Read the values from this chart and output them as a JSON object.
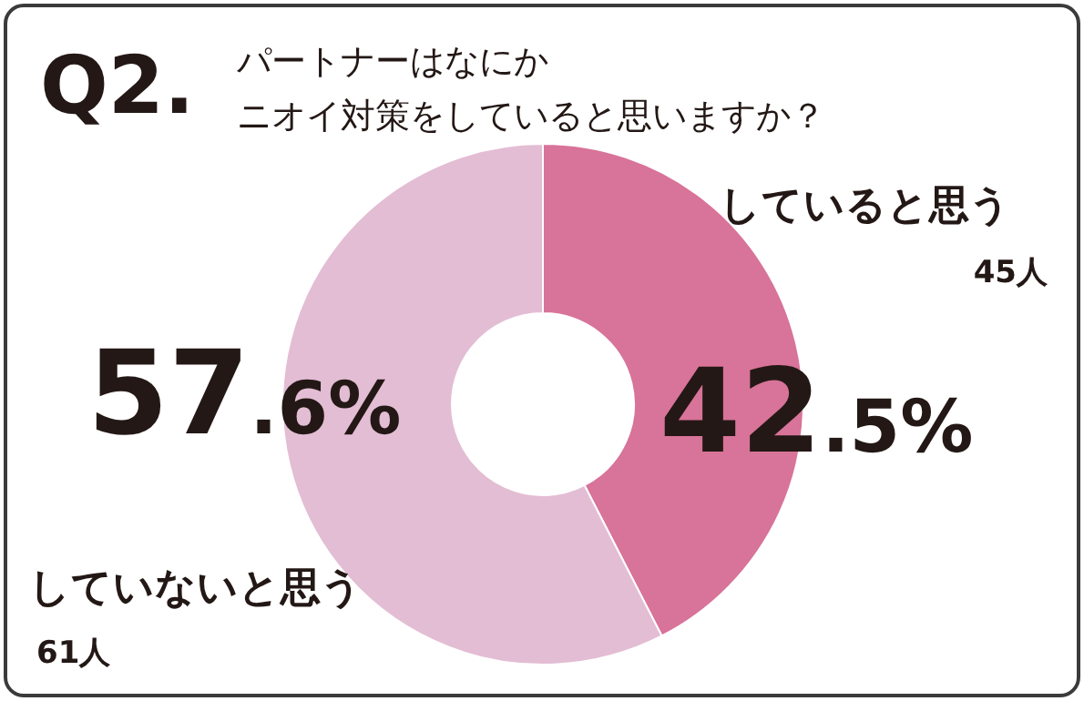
{
  "chart_data": {
    "type": "donut",
    "title": "Q2.",
    "subtitle": "パートナーはなにかニオイ対策をしていると思いますか？",
    "categories": [
      "していると思う",
      "していないと思う"
    ],
    "values": [
      42.5,
      57.6
    ],
    "colors": [
      "#d87399",
      "#e3bdd4"
    ],
    "value_labels": [
      "42.5%",
      "57.6%"
    ],
    "annotations": [
      "45人",
      "61人"
    ]
  }
}
